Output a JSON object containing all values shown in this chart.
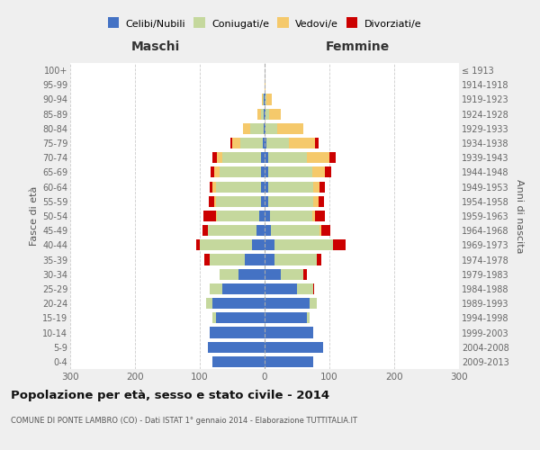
{
  "age_groups": [
    "0-4",
    "5-9",
    "10-14",
    "15-19",
    "20-24",
    "25-29",
    "30-34",
    "35-39",
    "40-44",
    "45-49",
    "50-54",
    "55-59",
    "60-64",
    "65-69",
    "70-74",
    "75-79",
    "80-84",
    "85-89",
    "90-94",
    "95-99",
    "100+"
  ],
  "birth_years": [
    "2009-2013",
    "2004-2008",
    "1999-2003",
    "1994-1998",
    "1989-1993",
    "1984-1988",
    "1979-1983",
    "1974-1978",
    "1969-1973",
    "1964-1968",
    "1959-1963",
    "1954-1958",
    "1949-1953",
    "1944-1948",
    "1939-1943",
    "1934-1938",
    "1929-1933",
    "1924-1928",
    "1919-1923",
    "1914-1918",
    "≤ 1913"
  ],
  "maschi": {
    "celibi": [
      80,
      88,
      85,
      75,
      80,
      65,
      40,
      30,
      20,
      13,
      8,
      5,
      5,
      5,
      5,
      3,
      2,
      1,
      1,
      0,
      0
    ],
    "coniugati": [
      0,
      0,
      0,
      5,
      10,
      20,
      30,
      55,
      80,
      75,
      65,
      70,
      70,
      65,
      60,
      35,
      20,
      5,
      2,
      0,
      0
    ],
    "vedovi": [
      0,
      0,
      0,
      0,
      0,
      0,
      0,
      0,
      0,
      0,
      2,
      3,
      5,
      8,
      8,
      12,
      12,
      5,
      1,
      0,
      0
    ],
    "divorziati": [
      0,
      0,
      0,
      0,
      0,
      0,
      0,
      8,
      5,
      8,
      20,
      8,
      5,
      5,
      8,
      3,
      0,
      0,
      0,
      0,
      0
    ]
  },
  "femmine": {
    "nubili": [
      75,
      90,
      75,
      65,
      70,
      50,
      25,
      15,
      15,
      10,
      8,
      5,
      5,
      5,
      5,
      3,
      2,
      2,
      1,
      0,
      0
    ],
    "coniugate": [
      0,
      0,
      0,
      5,
      10,
      25,
      35,
      65,
      90,
      75,
      65,
      70,
      70,
      68,
      60,
      35,
      18,
      5,
      2,
      0,
      0
    ],
    "vedove": [
      0,
      0,
      0,
      0,
      0,
      0,
      0,
      0,
      0,
      2,
      5,
      8,
      10,
      20,
      35,
      40,
      40,
      18,
      8,
      2,
      0
    ],
    "divorziate": [
      0,
      0,
      0,
      0,
      0,
      2,
      5,
      8,
      20,
      15,
      15,
      8,
      8,
      10,
      10,
      5,
      0,
      0,
      0,
      0,
      0
    ]
  },
  "colors": {
    "celibi": "#4472C4",
    "coniugati": "#c5d89d",
    "vedovi": "#f5c96b",
    "divorziati": "#cc0000"
  },
  "xlim": 300,
  "title": "Popolazione per età, sesso e stato civile - 2014",
  "subtitle": "COMUNE DI PONTE LAMBRO (CO) - Dati ISTAT 1° gennaio 2014 - Elaborazione TUTTITALIA.IT",
  "ylabel_left": "Fasce di età",
  "ylabel_right": "Anni di nascita",
  "xlabel_left": "Maschi",
  "xlabel_right": "Femmine",
  "bg_color": "#efefef",
  "plot_bg": "#ffffff",
  "legend_labels": [
    "Celibi/Nubili",
    "Coniugati/e",
    "Vedovi/e",
    "Divorziati/e"
  ]
}
